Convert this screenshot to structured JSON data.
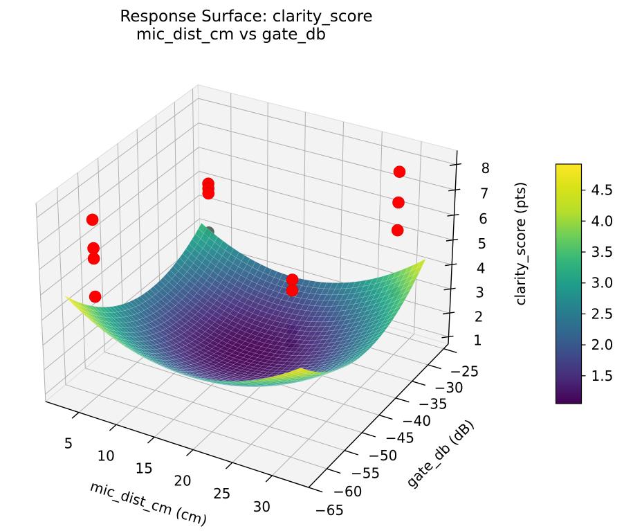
{
  "chart_data": {
    "type": "surface3d_scatter",
    "title_lines": [
      "Response Surface: clarity_score",
      "mic_dist_cm vs gate_db"
    ],
    "xlabel": "mic_dist_cm (cm)",
    "ylabel": "gate_db (dB)",
    "zlabel": "clarity_score (pts)",
    "xlim": [
      0.5,
      34.5
    ],
    "ylim": [
      -65,
      -23.5
    ],
    "zlim": [
      0.7,
      8.55
    ],
    "xticks": [
      5,
      10,
      15,
      20,
      25,
      30
    ],
    "yticks": [
      -65,
      -60,
      -55,
      -50,
      -45,
      -40,
      -35,
      -30,
      -25
    ],
    "zticks": [
      1,
      2,
      3,
      4,
      5,
      6,
      7,
      8
    ],
    "view": {
      "elev": 30,
      "azim": -60
    },
    "surface": {
      "cmap": "viridis",
      "vmin": 1.05,
      "vmax": 4.92,
      "x_range": [
        2.5,
        32.5
      ],
      "y_range": [
        -63,
        -27
      ],
      "grid_n": 40,
      "center": [
        17.5,
        -45
      ],
      "coeffs": {
        "z0": 1.08,
        "a": 0.00744,
        "b": 0.00517,
        "c": 0.00104,
        "d": 0.018,
        "e": -0.0267
      },
      "model": "z = z0 + a*(x-17.5)^2 + b*(y+45)^2 + c*(x-17.5)*(y+45) + d*(x-17.5) + e*(y+45)"
    },
    "colorbar": {
      "ticks": [
        1.5,
        2.0,
        2.5,
        3.0,
        3.5,
        4.0,
        4.5
      ]
    },
    "scatter": {
      "color": "#ff0000",
      "points": [
        {
          "mic_dist_cm": 5,
          "gate_db": -60,
          "clarity": 7.7,
          "behind": false
        },
        {
          "mic_dist_cm": 5,
          "gate_db": -60,
          "clarity": 6.6,
          "behind": false
        },
        {
          "mic_dist_cm": 5,
          "gate_db": -60,
          "clarity": 6.2,
          "behind": false
        },
        {
          "mic_dist_cm": 5,
          "gate_db": -60,
          "clarity": 4.7,
          "behind": false
        },
        {
          "mic_dist_cm": 5,
          "gate_db": -30,
          "clarity": 5.6,
          "behind": false
        },
        {
          "mic_dist_cm": 5,
          "gate_db": -30,
          "clarity": 5.4,
          "behind": false
        },
        {
          "mic_dist_cm": 5,
          "gate_db": -30,
          "clarity": 5.2,
          "behind": false
        },
        {
          "mic_dist_cm": 5,
          "gate_db": -30,
          "clarity": 3.6,
          "behind": true,
          "shade": "#57685c"
        },
        {
          "mic_dist_cm": 30,
          "gate_db": -60,
          "clarity": 7.6,
          "behind": false
        },
        {
          "mic_dist_cm": 30,
          "gate_db": -60,
          "clarity": 7.2,
          "behind": false
        },
        {
          "mic_dist_cm": 30,
          "gate_db": -60,
          "clarity": 5.7,
          "behind": true,
          "shade": "#6e2152"
        },
        {
          "mic_dist_cm": 30,
          "gate_db": -60,
          "clarity": 5.2,
          "behind": true,
          "shade": "#6e2152"
        },
        {
          "mic_dist_cm": 30,
          "gate_db": -30,
          "clarity": 8.1,
          "behind": false
        },
        {
          "mic_dist_cm": 30,
          "gate_db": -30,
          "clarity": 6.9,
          "behind": false
        },
        {
          "mic_dist_cm": 30,
          "gate_db": -30,
          "clarity": 5.8,
          "behind": false
        },
        {
          "mic_dist_cm": 30,
          "gate_db": -30,
          "clarity": 3.3,
          "behind": true,
          "shade": "#6d7455"
        }
      ]
    },
    "style": {
      "pane_color": "#f3f3f3",
      "pane_edge_color": "#dcdcdc",
      "grid_color": "#b0b0b0",
      "spine_color": "#000000",
      "surface_opacity": 0.95,
      "mesh_line_color": "rgba(255,255,255,0.30)"
    }
  }
}
